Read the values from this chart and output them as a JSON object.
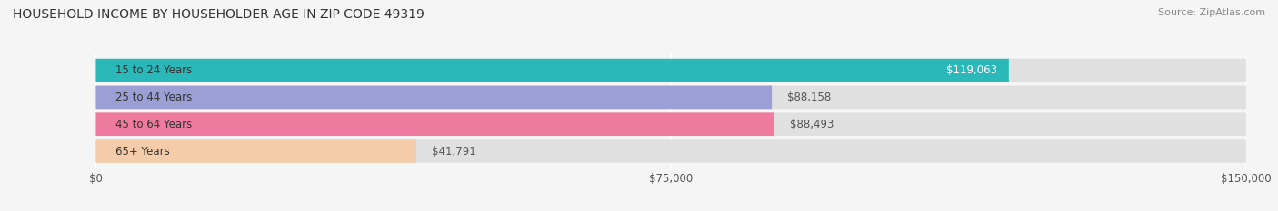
{
  "title": "HOUSEHOLD INCOME BY HOUSEHOLDER AGE IN ZIP CODE 49319",
  "source": "Source: ZipAtlas.com",
  "categories": [
    "15 to 24 Years",
    "25 to 44 Years",
    "45 to 64 Years",
    "65+ Years"
  ],
  "values": [
    119063,
    88158,
    88493,
    41791
  ],
  "bar_colors": [
    "#2ab8b8",
    "#9b9fd4",
    "#f07ba0",
    "#f5ccaa"
  ],
  "value_labels": [
    "$119,063",
    "$88,158",
    "$88,493",
    "$41,791"
  ],
  "xlim": [
    0,
    150000
  ],
  "xticks": [
    0,
    75000,
    150000
  ],
  "xtick_labels": [
    "$0",
    "$75,000",
    "$150,000"
  ],
  "bar_height": 0.62,
  "background_color": "#f5f5f5",
  "bar_bg_color": "#e0e0e0",
  "title_fontsize": 10,
  "source_fontsize": 8,
  "label_fontsize": 8.5,
  "value_fontsize": 8.5
}
